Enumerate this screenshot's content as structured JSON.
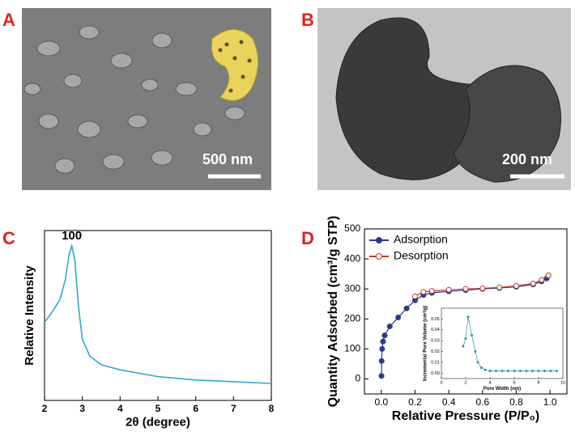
{
  "panels": {
    "labels": [
      "A",
      "B",
      "C",
      "D"
    ],
    "scale_bars": [
      "500 nm",
      "200 nm"
    ]
  },
  "chart_data": [
    {
      "type": "line",
      "xlabel": "2θ (degree)",
      "ylabel": "Relative Intensity",
      "annotation": "100",
      "color": "#2ea8d4",
      "x": [
        2.0,
        2.2,
        2.4,
        2.55,
        2.65,
        2.72,
        2.8,
        2.9,
        3.0,
        3.2,
        3.5,
        4.0,
        5.0,
        6.0,
        7.0,
        8.0
      ],
      "values": [
        0.46,
        0.52,
        0.59,
        0.71,
        0.86,
        0.91,
        0.83,
        0.55,
        0.36,
        0.26,
        0.21,
        0.18,
        0.14,
        0.12,
        0.11,
        0.1
      ],
      "xlim": [
        2,
        8
      ],
      "ylim": [
        0,
        1
      ],
      "xticks": [
        2,
        3,
        4,
        5,
        6,
        7,
        8
      ]
    },
    {
      "type": "line",
      "xlabel": "Relative Pressure (P/P₀)",
      "ylabel": "Quantity Adsorbed (cm³/g STP)",
      "legend": "upper left",
      "xlim": [
        -0.1,
        1.1
      ],
      "ylim": [
        -50,
        500
      ],
      "xticks": [
        {
          "value": 0,
          "label": "0.0"
        },
        {
          "value": 0.2,
          "label": "0.2"
        },
        {
          "value": 0.4,
          "label": "0.4"
        },
        {
          "value": 0.6,
          "label": "0.6"
        },
        {
          "value": 0.8,
          "label": "0.8"
        },
        {
          "value": 1,
          "label": "1.0"
        }
      ],
      "yticks": [
        0,
        100,
        200,
        300,
        400,
        500
      ],
      "series": [
        {
          "name": "Adsorption",
          "color": "#2b3a8c",
          "marker": "filled",
          "x": [
            0.001,
            0.002,
            0.005,
            0.01,
            0.02,
            0.05,
            0.1,
            0.15,
            0.2,
            0.25,
            0.3,
            0.4,
            0.5,
            0.6,
            0.7,
            0.8,
            0.9,
            0.95,
            0.98,
            0.99
          ],
          "values": [
            10,
            60,
            100,
            125,
            145,
            175,
            205,
            235,
            262,
            280,
            287,
            292,
            296,
            300,
            303,
            307,
            315,
            325,
            335,
            345
          ]
        },
        {
          "name": "Desorption",
          "color": "#c0392b",
          "marker": "open",
          "x": [
            0.99,
            0.95,
            0.9,
            0.8,
            0.7,
            0.6,
            0.5,
            0.4,
            0.3,
            0.25,
            0.2
          ],
          "values": [
            345,
            330,
            318,
            310,
            305,
            302,
            300,
            297,
            293,
            290,
            275
          ]
        }
      ]
    },
    {
      "type": "line",
      "xlabel": "Pore Width (nm)",
      "ylabel": "Incremental Pore Volume (cm³/g)",
      "color": "#1f9a9a",
      "marker": "filled",
      "x": [
        1.8,
        2.0,
        2.2,
        2.5,
        2.8,
        3.0,
        3.3,
        3.6,
        4.0,
        4.5,
        5.0,
        5.5,
        6.0,
        6.5,
        7.0,
        7.5,
        8.0,
        8.5,
        9.0,
        9.5
      ],
      "values": [
        0.025,
        0.032,
        0.052,
        0.035,
        0.02,
        0.01,
        0.005,
        0.003,
        0.002,
        0.002,
        0.002,
        0.002,
        0.002,
        0.002,
        0.002,
        0.002,
        0.002,
        0.002,
        0.002,
        0.002
      ],
      "xlim": [
        0,
        10
      ],
      "ylim": [
        -0.005,
        0.06
      ],
      "xticks": [
        0,
        2,
        4,
        6,
        8,
        10
      ],
      "yticks": [
        {
          "value": 0,
          "label": "0.00"
        },
        {
          "value": 0.01,
          "label": "0.01"
        },
        {
          "value": 0.02,
          "label": "0.02"
        },
        {
          "value": 0.03,
          "label": "0.03"
        },
        {
          "value": 0.04,
          "label": "0.04"
        },
        {
          "value": 0.05,
          "label": "0.05"
        }
      ]
    }
  ]
}
